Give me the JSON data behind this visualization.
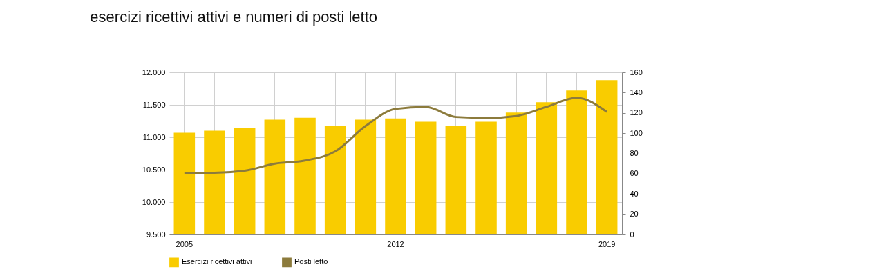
{
  "chart_data": {
    "type": "bar",
    "title": "esercizi ricettivi attivi e numeri di posti letto",
    "categories": [
      "2005",
      null,
      null,
      null,
      null,
      null,
      null,
      "2012",
      null,
      null,
      null,
      null,
      null,
      null,
      "2019"
    ],
    "series": [
      {
        "name": "Esercizi ricettivi attivi",
        "color": "#f9cc00",
        "values": [
          11070,
          11100,
          11150,
          11270,
          11300,
          11180,
          11270,
          11290,
          11240,
          11180,
          11240,
          11380,
          11540,
          11720,
          11880
        ]
      },
      {
        "name": "Posti letto",
        "type": "line",
        "axis": "y2",
        "color": "#8c7b3c",
        "values": [
          61,
          61,
          63,
          70,
          73,
          82,
          107,
          124,
          126,
          116,
          115,
          117,
          126,
          135,
          121
        ]
      }
    ],
    "ylim": [
      9500,
      12000
    ],
    "yticks": [
      {
        "value": 9500,
        "label": "9.500"
      },
      {
        "value": 10000,
        "label": "10.000"
      },
      {
        "value": 10500,
        "label": "10.500"
      },
      {
        "value": 11000,
        "label": "11.000"
      },
      {
        "value": 11500,
        "label": "11.500"
      },
      {
        "value": 12000,
        "label": "12.000"
      }
    ],
    "y2lim": [
      0,
      160
    ],
    "y2ticks": [
      0,
      20,
      40,
      60,
      80,
      100,
      120,
      140,
      160
    ],
    "grid": true,
    "legend": "bottom"
  }
}
